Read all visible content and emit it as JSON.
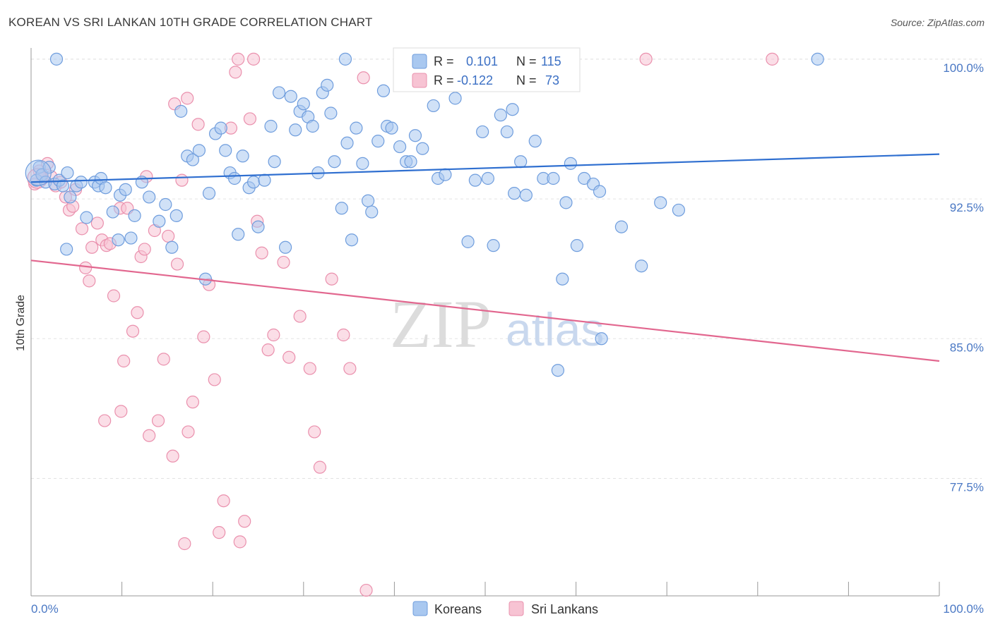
{
  "title": "KOREAN VS SRI LANKAN 10TH GRADE CORRELATION CHART",
  "source": "Source: ZipAtlas.com",
  "watermark": {
    "zip": "ZIP",
    "atlas": "atlas"
  },
  "colors": {
    "korean_fill": "#a9c8f0",
    "korean_stroke": "#6f9ddd",
    "korean_line": "#2f6fd0",
    "srilankan_fill": "#f7c3d3",
    "srilankan_stroke": "#ea90ad",
    "srilankan_line": "#e2678f",
    "tick_text": "#4a78c4",
    "grid": "#e3e3e3"
  },
  "legend": {
    "r_label": "R =",
    "n_label": "N =",
    "korean_r": "0.101",
    "korean_n": "115",
    "srilankan_r": "-0.122",
    "srilankan_n": "73"
  },
  "bottom_legend": {
    "korean": "Koreans",
    "srilankan": "Sri Lankans"
  },
  "chart_data": {
    "type": "scatter",
    "title": "KOREAN VS SRI LANKAN 10TH GRADE CORRELATION CHART",
    "xlabel": "",
    "ylabel": "10th Grade",
    "xlim": [
      0,
      100
    ],
    "ylim": [
      71.2,
      100.6
    ],
    "x_tick_labels": [
      "0.0%",
      "100.0%"
    ],
    "y_ticks": [
      77.5,
      85.0,
      92.5,
      100.0
    ],
    "y_tick_labels": [
      "77.5%",
      "85.0%",
      "92.5%",
      "100.0%"
    ],
    "grid": true,
    "legend_position": "top-center",
    "series": [
      {
        "name": "Koreans",
        "r": 0.101,
        "n": 115,
        "trend": {
          "x": [
            0,
            100
          ],
          "y": [
            93.4,
            94.9
          ]
        },
        "points": [
          [
            0.6,
            93.5
          ],
          [
            0.9,
            94.2
          ],
          [
            1.2,
            93.8
          ],
          [
            1.6,
            93.4
          ],
          [
            2.0,
            94.2
          ],
          [
            2.6,
            93.3
          ],
          [
            3.1,
            93.5
          ],
          [
            3.5,
            93.2
          ],
          [
            4.0,
            93.9
          ],
          [
            4.3,
            92.6
          ],
          [
            3.9,
            89.8
          ],
          [
            5.0,
            93.2
          ],
          [
            5.5,
            93.4
          ],
          [
            6.1,
            91.5
          ],
          [
            7.0,
            93.4
          ],
          [
            7.4,
            93.2
          ],
          [
            7.7,
            93.6
          ],
          [
            8.2,
            93.1
          ],
          [
            9.0,
            91.8
          ],
          [
            9.6,
            90.3
          ],
          [
            9.8,
            92.7
          ],
          [
            10.4,
            93.0
          ],
          [
            11.0,
            90.4
          ],
          [
            11.4,
            91.6
          ],
          [
            12.2,
            93.4
          ],
          [
            13.0,
            92.6
          ],
          [
            14.1,
            91.3
          ],
          [
            14.8,
            92.2
          ],
          [
            15.5,
            89.9
          ],
          [
            16.0,
            91.6
          ],
          [
            16.5,
            97.2
          ],
          [
            17.2,
            94.8
          ],
          [
            17.8,
            94.6
          ],
          [
            18.5,
            95.1
          ],
          [
            19.2,
            88.2
          ],
          [
            19.6,
            92.8
          ],
          [
            20.3,
            96.0
          ],
          [
            20.9,
            96.3
          ],
          [
            21.4,
            95.1
          ],
          [
            21.9,
            93.9
          ],
          [
            22.4,
            93.6
          ],
          [
            22.8,
            90.6
          ],
          [
            23.3,
            94.8
          ],
          [
            24.0,
            93.1
          ],
          [
            24.5,
            93.4
          ],
          [
            25.0,
            91.0
          ],
          [
            25.7,
            93.5
          ],
          [
            26.4,
            96.4
          ],
          [
            26.8,
            94.5
          ],
          [
            27.3,
            98.2
          ],
          [
            28.0,
            89.9
          ],
          [
            28.6,
            98.0
          ],
          [
            29.1,
            96.2
          ],
          [
            29.6,
            97.2
          ],
          [
            30.0,
            97.6
          ],
          [
            30.5,
            96.9
          ],
          [
            31.0,
            96.4
          ],
          [
            31.6,
            93.9
          ],
          [
            32.1,
            98.2
          ],
          [
            32.6,
            98.6
          ],
          [
            33.0,
            97.1
          ],
          [
            33.4,
            94.5
          ],
          [
            34.2,
            92.0
          ],
          [
            34.8,
            95.5
          ],
          [
            35.3,
            90.3
          ],
          [
            35.8,
            96.3
          ],
          [
            36.5,
            94.4
          ],
          [
            37.1,
            92.4
          ],
          [
            37.5,
            91.8
          ],
          [
            38.2,
            95.6
          ],
          [
            38.8,
            98.3
          ],
          [
            39.2,
            96.4
          ],
          [
            39.7,
            96.3
          ],
          [
            40.6,
            95.3
          ],
          [
            41.3,
            94.5
          ],
          [
            41.8,
            94.5
          ],
          [
            42.3,
            95.9
          ],
          [
            43.1,
            95.2
          ],
          [
            44.3,
            97.5
          ],
          [
            44.8,
            93.6
          ],
          [
            45.6,
            93.8
          ],
          [
            46.7,
            97.9
          ],
          [
            47.3,
            99.6
          ],
          [
            48.1,
            90.2
          ],
          [
            48.9,
            93.5
          ],
          [
            49.7,
            96.1
          ],
          [
            50.3,
            93.6
          ],
          [
            50.9,
            90.0
          ],
          [
            51.7,
            97.0
          ],
          [
            52.4,
            96.1
          ],
          [
            53.0,
            97.3
          ],
          [
            53.2,
            92.8
          ],
          [
            53.9,
            94.5
          ],
          [
            54.5,
            92.7
          ],
          [
            55.5,
            95.6
          ],
          [
            56.1,
            99.6
          ],
          [
            56.4,
            93.6
          ],
          [
            57.1,
            100.0
          ],
          [
            57.5,
            93.6
          ],
          [
            58.0,
            83.3
          ],
          [
            58.5,
            88.2
          ],
          [
            58.9,
            92.3
          ],
          [
            59.4,
            94.4
          ],
          [
            60.1,
            90.0
          ],
          [
            60.9,
            93.6
          ],
          [
            61.9,
            93.3
          ],
          [
            62.6,
            92.9
          ],
          [
            62.8,
            85.0
          ],
          [
            65.0,
            91.0
          ],
          [
            67.2,
            88.9
          ],
          [
            69.3,
            92.3
          ],
          [
            71.3,
            91.9
          ],
          [
            2.8,
            100.0
          ],
          [
            34.6,
            100.0
          ],
          [
            86.6,
            100.0
          ]
        ]
      },
      {
        "name": "Sri Lankans",
        "r": -0.122,
        "n": 73,
        "trend": {
          "x": [
            0,
            100
          ],
          "y": [
            89.2,
            83.8
          ]
        },
        "points": [
          [
            0.4,
            93.3
          ],
          [
            0.9,
            94.0
          ],
          [
            1.3,
            93.6
          ],
          [
            1.8,
            94.4
          ],
          [
            2.2,
            93.7
          ],
          [
            2.7,
            93.2
          ],
          [
            3.3,
            93.4
          ],
          [
            3.8,
            92.6
          ],
          [
            4.2,
            91.9
          ],
          [
            4.6,
            92.1
          ],
          [
            4.9,
            93.0
          ],
          [
            5.6,
            90.9
          ],
          [
            6.0,
            88.8
          ],
          [
            6.4,
            88.1
          ],
          [
            6.7,
            89.9
          ],
          [
            7.3,
            91.2
          ],
          [
            7.8,
            90.3
          ],
          [
            8.3,
            90.0
          ],
          [
            8.7,
            90.1
          ],
          [
            9.1,
            87.3
          ],
          [
            9.8,
            92.0
          ],
          [
            10.2,
            83.8
          ],
          [
            10.6,
            92.0
          ],
          [
            11.2,
            85.4
          ],
          [
            11.7,
            86.4
          ],
          [
            12.1,
            89.4
          ],
          [
            12.5,
            89.8
          ],
          [
            13.0,
            79.8
          ],
          [
            13.6,
            90.8
          ],
          [
            14.0,
            80.6
          ],
          [
            14.6,
            83.9
          ],
          [
            15.1,
            90.5
          ],
          [
            15.6,
            78.7
          ],
          [
            16.1,
            89.0
          ],
          [
            16.9,
            74.0
          ],
          [
            17.3,
            80.0
          ],
          [
            17.8,
            81.6
          ],
          [
            18.4,
            96.5
          ],
          [
            19.0,
            85.1
          ],
          [
            19.6,
            87.9
          ],
          [
            20.2,
            82.8
          ],
          [
            20.7,
            74.6
          ],
          [
            21.2,
            76.3
          ],
          [
            22.0,
            96.3
          ],
          [
            22.5,
            99.3
          ],
          [
            23.0,
            74.1
          ],
          [
            23.5,
            75.2
          ],
          [
            24.1,
            96.8
          ],
          [
            24.9,
            91.3
          ],
          [
            25.4,
            89.6
          ],
          [
            26.1,
            84.4
          ],
          [
            26.7,
            85.2
          ],
          [
            27.8,
            89.1
          ],
          [
            28.4,
            84.0
          ],
          [
            29.6,
            86.2
          ],
          [
            30.7,
            83.4
          ],
          [
            31.2,
            80.0
          ],
          [
            31.8,
            78.1
          ],
          [
            33.1,
            88.2
          ],
          [
            34.4,
            85.2
          ],
          [
            35.1,
            83.4
          ],
          [
            36.9,
            71.5
          ],
          [
            17.2,
            97.9
          ],
          [
            15.8,
            97.6
          ],
          [
            16.6,
            93.5
          ],
          [
            22.8,
            100.0
          ],
          [
            24.5,
            100.0
          ],
          [
            36.6,
            99.0
          ],
          [
            67.7,
            100.0
          ],
          [
            81.6,
            100.0
          ],
          [
            8.1,
            80.6
          ],
          [
            9.9,
            81.1
          ],
          [
            12.7,
            93.7
          ]
        ]
      }
    ]
  }
}
